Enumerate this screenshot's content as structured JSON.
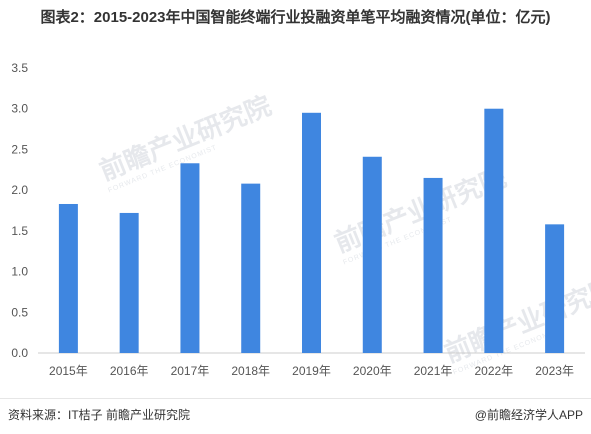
{
  "title": "图表2：2015-2023年中国智能终端行业投融资单笔平均融资情况(单位：亿元)",
  "watermark": {
    "main": "前瞻产业研究院",
    "sub": "FORWARD THE ECONOMIST"
  },
  "footer": {
    "source": "资料来源：IT桔子 前瞻产业研究院",
    "brand": "@前瞻经济学人APP"
  },
  "colors": {
    "bar": "#3f86e0",
    "axis": "#cccccc",
    "text": "#555555"
  },
  "chart_data": {
    "type": "bar",
    "title": "图表2：2015-2023年中国智能终端行业投融资单笔平均融资情况(单位：亿元)",
    "xlabel": "",
    "ylabel": "",
    "ylim": [
      0,
      3.5
    ],
    "yticks": [
      "0.0",
      "0.5",
      "1.0",
      "1.5",
      "2.0",
      "2.5",
      "3.0",
      "3.5"
    ],
    "categories": [
      "2015年",
      "2016年",
      "2017年",
      "2018年",
      "2019年",
      "2020年",
      "2021年",
      "2022年",
      "2023年"
    ],
    "values": [
      1.83,
      1.72,
      2.33,
      2.08,
      2.95,
      2.41,
      2.15,
      3.0,
      1.58
    ],
    "grid": false,
    "legend": "none"
  }
}
